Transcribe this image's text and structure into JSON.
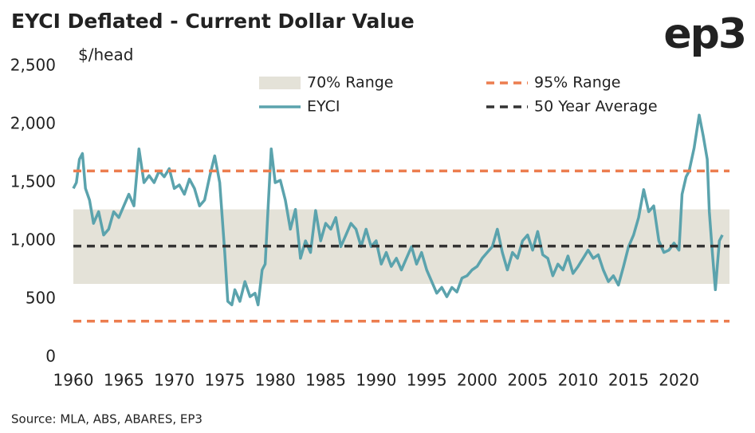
{
  "chart_data": {
    "type": "line",
    "title": "EYCI Deflated - Current Dollar Value",
    "logo": "ep3",
    "y_label": "$/head",
    "source": "Source: MLA, ABS, ABARES, EP3",
    "xlim": [
      1960,
      2025
    ],
    "xticks": [
      1960,
      1965,
      1970,
      1975,
      1980,
      1985,
      1990,
      1995,
      2000,
      2005,
      2010,
      2015,
      2020
    ],
    "ylim": [
      0,
      2500
    ],
    "yticks": [
      0,
      500,
      {
        "value": 1000,
        "label": "1,000"
      },
      {
        "value": 1500,
        "label": "1,500"
      },
      {
        "value": 2000,
        "label": "2,000"
      },
      {
        "value": 2500,
        "label": "2,500"
      }
    ],
    "bands": [
      {
        "name": "70% Range",
        "values": [
          630,
          1270
        ],
        "color": "#e4e2d8"
      }
    ],
    "reference_lines": [
      {
        "name": "95% Range",
        "values": [
          310,
          1600
        ],
        "color": "#ec7d4f"
      },
      {
        "name": "50 Year Average",
        "values": [
          955
        ],
        "color": "#333333"
      }
    ],
    "series": [
      {
        "name": "EYCI",
        "color": "#5ba3ad",
        "x": [
          1960,
          1960.3,
          1960.6,
          1960.9,
          1961.2,
          1961.6,
          1962,
          1962.5,
          1963,
          1963.5,
          1964,
          1964.5,
          1965,
          1965.5,
          1966,
          1966.5,
          1967,
          1967.5,
          1968,
          1968.5,
          1969,
          1969.5,
          1970,
          1970.5,
          1971,
          1971.5,
          1972,
          1972.5,
          1973,
          1973.5,
          1974,
          1974.5,
          1975,
          1975.3,
          1975.7,
          1976,
          1976.5,
          1977,
          1977.5,
          1978,
          1978.3,
          1978.7,
          1979,
          1979.3,
          1979.6,
          1980,
          1980.5,
          1981,
          1981.5,
          1982,
          1982.5,
          1983,
          1983.5,
          1984,
          1984.5,
          1985,
          1985.5,
          1986,
          1986.5,
          1987,
          1987.5,
          1988,
          1988.5,
          1989,
          1989.5,
          1990,
          1990.5,
          1991,
          1991.5,
          1992,
          1992.5,
          1993,
          1993.5,
          1994,
          1994.5,
          1995,
          1995.5,
          1996,
          1996.5,
          1997,
          1997.5,
          1998,
          1998.5,
          1999,
          1999.5,
          2000,
          2000.5,
          2001,
          2001.5,
          2002,
          2002.5,
          2003,
          2003.5,
          2004,
          2004.5,
          2005,
          2005.5,
          2006,
          2006.5,
          2007,
          2007.5,
          2008,
          2008.5,
          2009,
          2009.5,
          2010,
          2010.5,
          2011,
          2011.5,
          2012,
          2012.5,
          2013,
          2013.5,
          2014,
          2014.5,
          2015,
          2015.5,
          2016,
          2016.5,
          2017,
          2017.5,
          2018,
          2018.5,
          2019,
          2019.5,
          2020,
          2020.3,
          2020.7,
          2021,
          2021.5,
          2022,
          2022.4,
          2022.8,
          2023,
          2023.3,
          2023.6,
          2024,
          2024.3
        ],
        "values": [
          1450,
          1500,
          1700,
          1750,
          1450,
          1350,
          1150,
          1250,
          1050,
          1100,
          1250,
          1200,
          1300,
          1400,
          1300,
          1790,
          1500,
          1560,
          1500,
          1600,
          1550,
          1620,
          1450,
          1480,
          1400,
          1530,
          1450,
          1300,
          1350,
          1550,
          1730,
          1500,
          900,
          480,
          450,
          580,
          480,
          650,
          520,
          550,
          450,
          750,
          800,
          1300,
          1790,
          1500,
          1520,
          1350,
          1100,
          1270,
          850,
          1000,
          900,
          1260,
          1000,
          1150,
          1100,
          1200,
          950,
          1050,
          1150,
          1100,
          950,
          1100,
          950,
          1000,
          800,
          900,
          780,
          850,
          750,
          850,
          950,
          800,
          900,
          750,
          650,
          550,
          600,
          520,
          600,
          560,
          680,
          700,
          750,
          780,
          850,
          900,
          950,
          1100,
          900,
          750,
          900,
          850,
          1000,
          1050,
          920,
          1080,
          880,
          850,
          700,
          800,
          750,
          870,
          720,
          780,
          850,
          920,
          850,
          880,
          750,
          650,
          700,
          620,
          780,
          950,
          1050,
          1200,
          1440,
          1250,
          1300,
          1000,
          900,
          920,
          980,
          920,
          1400,
          1550,
          1600,
          1800,
          2080,
          1900,
          1700,
          1250,
          900,
          580,
          1000,
          1050
        ]
      }
    ]
  }
}
